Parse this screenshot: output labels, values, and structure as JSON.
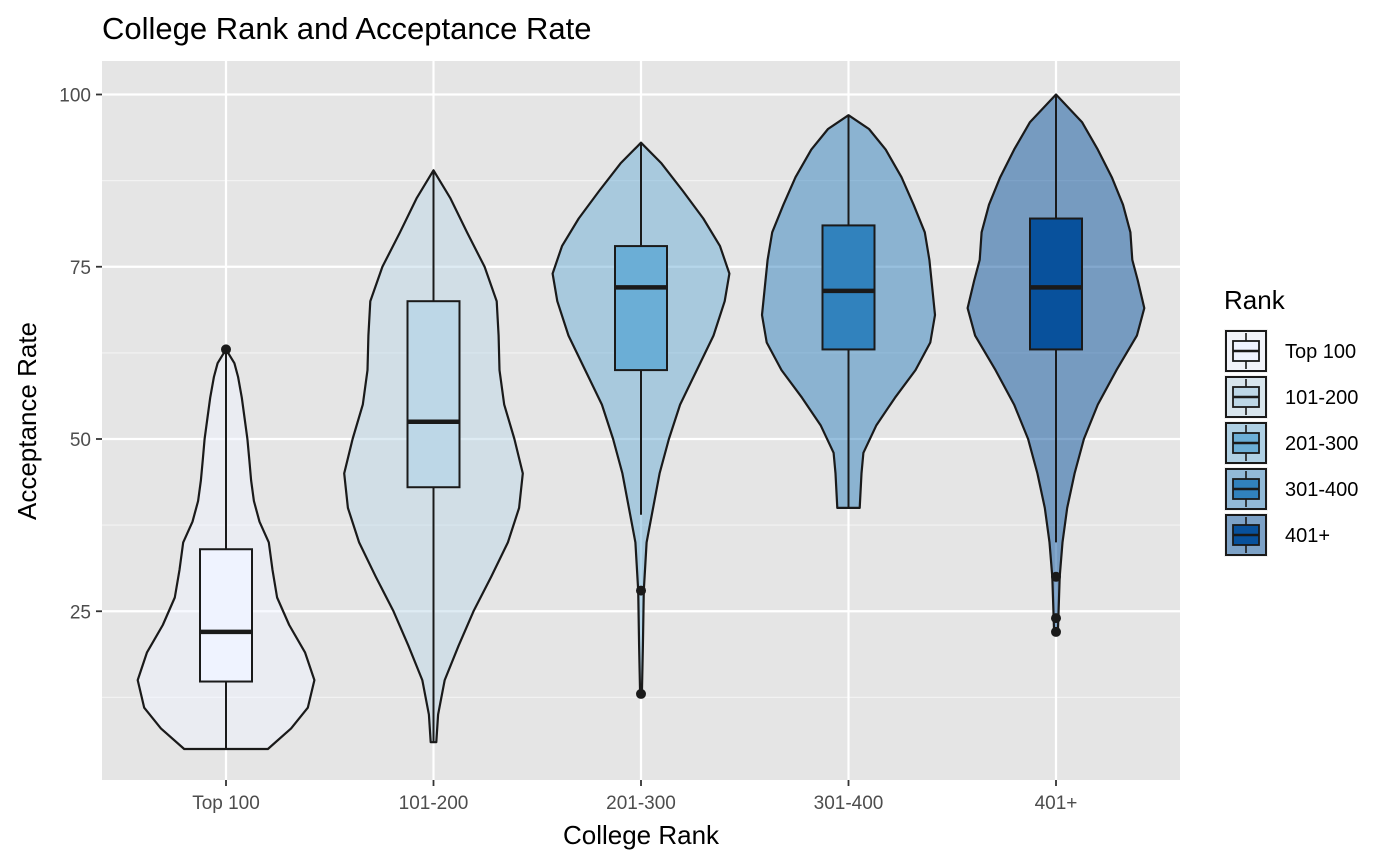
{
  "chart_data": {
    "type": "violin",
    "title": "College Rank and Acceptance Rate",
    "xlabel": "College Rank",
    "ylabel": "Acceptance Rate",
    "categories": [
      "Top 100",
      "101-200",
      "201-300",
      "301-400",
      "401+"
    ],
    "ylim": [
      0,
      105
    ],
    "yticks": [
      25,
      50,
      75,
      100
    ],
    "grid": true,
    "legend": {
      "title": "Rank",
      "position": "right",
      "entries": [
        "Top 100",
        "101-200",
        "201-300",
        "301-400",
        "401+"
      ]
    },
    "series": [
      {
        "category": "Top 100",
        "fill": "#eff3ff",
        "box": {
          "min": 5,
          "q1": 14.8,
          "median": 22,
          "q3": 34,
          "max": 62.5
        },
        "outliers": [
          63
        ],
        "density": [
          [
            5,
            0.45
          ],
          [
            8,
            0.7
          ],
          [
            11,
            0.88
          ],
          [
            15,
            0.95
          ],
          [
            19,
            0.85
          ],
          [
            23,
            0.68
          ],
          [
            27,
            0.55
          ],
          [
            31,
            0.5
          ],
          [
            35,
            0.46
          ],
          [
            38,
            0.36
          ],
          [
            41,
            0.3
          ],
          [
            44,
            0.27
          ],
          [
            47,
            0.25
          ],
          [
            50,
            0.23
          ],
          [
            53,
            0.2
          ],
          [
            56,
            0.17
          ],
          [
            59,
            0.13
          ],
          [
            61,
            0.09
          ],
          [
            63,
            0.0
          ]
        ]
      },
      {
        "category": "101-200",
        "fill": "#bdd7e7",
        "box": {
          "min": 6,
          "q1": 43,
          "median": 52.5,
          "q3": 70,
          "max": 89
        },
        "outliers": [],
        "density": [
          [
            6,
            0.03
          ],
          [
            10,
            0.05
          ],
          [
            15,
            0.12
          ],
          [
            20,
            0.27
          ],
          [
            25,
            0.43
          ],
          [
            30,
            0.62
          ],
          [
            35,
            0.8
          ],
          [
            40,
            0.92
          ],
          [
            45,
            0.96
          ],
          [
            50,
            0.87
          ],
          [
            55,
            0.76
          ],
          [
            60,
            0.71
          ],
          [
            65,
            0.7
          ],
          [
            70,
            0.68
          ],
          [
            75,
            0.55
          ],
          [
            80,
            0.36
          ],
          [
            85,
            0.18
          ],
          [
            89,
            0.0
          ]
        ]
      },
      {
        "category": "201-300",
        "fill": "#6baed6",
        "box": {
          "min": 39,
          "q1": 60,
          "median": 72,
          "q3": 78,
          "max": 93
        },
        "outliers": [
          28,
          13
        ],
        "density": [
          [
            13,
            0.01
          ],
          [
            20,
            0.02
          ],
          [
            28,
            0.03
          ],
          [
            35,
            0.06
          ],
          [
            40,
            0.13
          ],
          [
            45,
            0.2
          ],
          [
            50,
            0.3
          ],
          [
            55,
            0.42
          ],
          [
            60,
            0.6
          ],
          [
            65,
            0.78
          ],
          [
            70,
            0.9
          ],
          [
            74,
            0.95
          ],
          [
            78,
            0.85
          ],
          [
            82,
            0.67
          ],
          [
            86,
            0.45
          ],
          [
            90,
            0.22
          ],
          [
            93,
            0.0
          ]
        ]
      },
      {
        "category": "301-400",
        "fill": "#3182bd",
        "box": {
          "min": 40,
          "q1": 63,
          "median": 71.5,
          "q3": 81,
          "max": 97
        },
        "outliers": [],
        "density": [
          [
            40,
            0.12
          ],
          [
            45,
            0.14
          ],
          [
            48,
            0.16
          ],
          [
            52,
            0.3
          ],
          [
            56,
            0.5
          ],
          [
            60,
            0.72
          ],
          [
            64,
            0.88
          ],
          [
            68,
            0.93
          ],
          [
            72,
            0.9
          ],
          [
            76,
            0.87
          ],
          [
            80,
            0.82
          ],
          [
            84,
            0.7
          ],
          [
            88,
            0.57
          ],
          [
            92,
            0.4
          ],
          [
            95,
            0.22
          ],
          [
            97,
            0.0
          ]
        ]
      },
      {
        "category": "401+",
        "fill": "#08519c",
        "box": {
          "min": 35,
          "q1": 63,
          "median": 72,
          "q3": 82,
          "max": 100
        },
        "outliers": [
          30,
          24,
          22
        ],
        "density": [
          [
            22,
            0.02
          ],
          [
            30,
            0.04
          ],
          [
            35,
            0.07
          ],
          [
            40,
            0.12
          ],
          [
            45,
            0.2
          ],
          [
            50,
            0.3
          ],
          [
            55,
            0.45
          ],
          [
            60,
            0.65
          ],
          [
            65,
            0.87
          ],
          [
            69,
            0.95
          ],
          [
            73,
            0.88
          ],
          [
            76,
            0.82
          ],
          [
            80,
            0.8
          ],
          [
            84,
            0.72
          ],
          [
            88,
            0.6
          ],
          [
            92,
            0.45
          ],
          [
            96,
            0.28
          ],
          [
            100,
            0.0
          ]
        ]
      }
    ]
  }
}
